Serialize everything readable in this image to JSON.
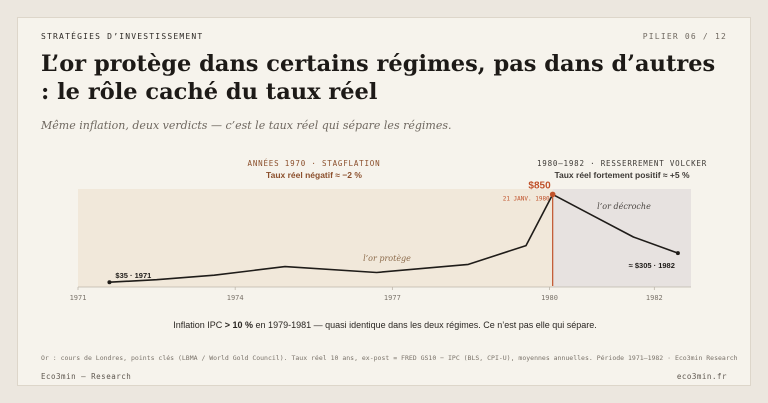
{
  "header": {
    "kicker": "STRATÉGIES D’INVESTISSEMENT",
    "pillar": "PILIER 06 / 12",
    "title": "L’or protège dans certains régimes, pas dans d’autres : le rôle caché du taux réel",
    "subtitle": "Même inflation, deux verdicts — c’est le taux réel qui sépare les régimes."
  },
  "chart_data": {
    "type": "line",
    "title": "",
    "xlabel": "",
    "ylabel": "",
    "x_ticks": [
      "1971",
      "1974",
      "1977",
      "1980",
      "1982"
    ],
    "xlim": [
      1971,
      1982.7
    ],
    "ylim": [
      0,
      900
    ],
    "grid": false,
    "series": [
      {
        "values": [
          {
            "x": 1971.6,
            "y": 35
          },
          {
            "x": 1972.5,
            "y": 58
          },
          {
            "x": 1973.6,
            "y": 100
          },
          {
            "x": 1974.95,
            "y": 180
          },
          {
            "x": 1976.7,
            "y": 125
          },
          {
            "x": 1978.45,
            "y": 200
          },
          {
            "x": 1979.55,
            "y": 375
          },
          {
            "x": 1980.06,
            "y": 850
          },
          {
            "x": 1980.8,
            "y": 660
          },
          {
            "x": 1981.6,
            "y": 455
          },
          {
            "x": 1982.45,
            "y": 305
          }
        ]
      }
    ],
    "regimes": [
      {
        "heading": "ANNÉES 1970 · STAGFLATION",
        "sub": "Taux réel négatif ≈ −2 %",
        "annotation": "l’or protège",
        "x_range": [
          1971,
          1980.06
        ],
        "color": "#f1e8da"
      },
      {
        "heading": "1980–1982 · RESSERREMENT VOLCKER",
        "sub": "Taux réel fortement positif ≈ +5 %",
        "annotation": "l’or décroche",
        "x_range": [
          1980.06,
          1982.7
        ],
        "color": "#e7e2e0"
      }
    ],
    "point_labels": {
      "start": "$35 · 1971",
      "peak_value": "$850",
      "peak_date": "21 JANV. 1980",
      "end": "≈ $305 · 1982"
    },
    "colors": {
      "line": "#1f1c19",
      "accent": "#c0522b",
      "heading_left": "#8b4f2c",
      "heading_right": "#3e3a36"
    }
  },
  "caption": {
    "pre": "Inflation IPC ",
    "bold": "> 10 %",
    "post": " en 1979-1981 — quasi identique dans les deux régimes. Ce n’est pas elle qui sépare."
  },
  "footer": {
    "source": "Or : cours de Londres, points clés (LBMA / World Gold Council). Taux réel 10 ans, ex-post = FRED GS10 − IPC (BLS, CPI-U), moyennes annuelles. Période 1971–1982 · Eco3min Research",
    "brand": "Eco3min — Research",
    "site": "eco3min.fr"
  }
}
